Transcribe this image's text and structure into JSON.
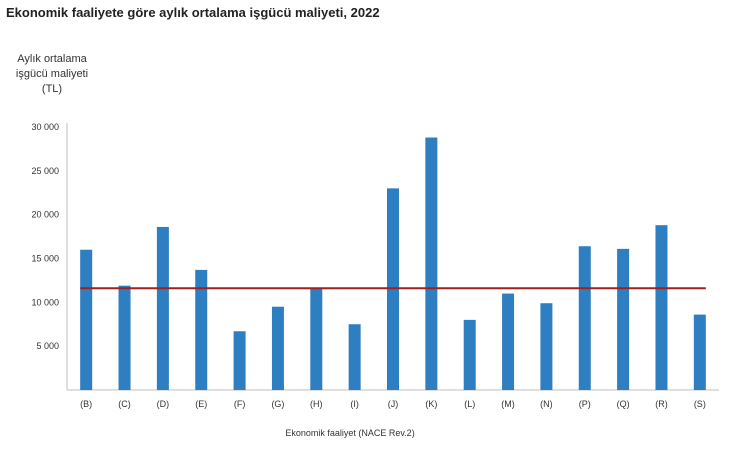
{
  "title": "Ekonomik faaliyete göre aylık ortalama işgücü maliyeti, 2022",
  "chart_data": {
    "type": "bar",
    "title": "Ekonomik faaliyete göre aylık ortalama işgücü maliyeti, 2022",
    "ylabel_lines": [
      "Aylık ortalama",
      "işgücü maliyeti",
      "(TL)"
    ],
    "xlabel": "Ekonomik faaliyet (NACE Rev.2)",
    "categories": [
      "(B)",
      "(C)",
      "(D)",
      "(E)",
      "(F)",
      "(G)",
      "(H)",
      "(I)",
      "(J)",
      "(K)",
      "(L)",
      "(M)",
      "(N)",
      "(P)",
      "(Q)",
      "(R)",
      "(S)"
    ],
    "values": [
      16000,
      11900,
      18600,
      13700,
      6700,
      9500,
      11600,
      7500,
      23000,
      28800,
      8000,
      11000,
      9900,
      16400,
      16100,
      18800,
      8600
    ],
    "ylim": [
      0,
      30000
    ],
    "yticks": [
      5000,
      10000,
      15000,
      20000,
      25000,
      30000
    ],
    "ytick_labels": [
      "5 000",
      "10 000",
      "15 000",
      "20 000",
      "25 000",
      "30 000"
    ],
    "reference_line": 11600,
    "bar_color": "#2e7fc1",
    "line_color": "#a0201e",
    "grid": false
  }
}
